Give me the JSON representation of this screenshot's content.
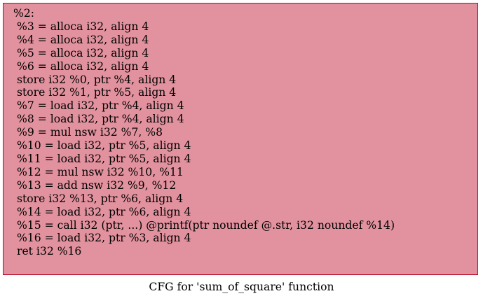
{
  "node": {
    "label": "%2:",
    "fill_color": "#e1929e",
    "border_color": "#b70d28",
    "instructions": [
      "%3 = alloca i32, align 4",
      "%4 = alloca i32, align 4",
      "%5 = alloca i32, align 4",
      "%6 = alloca i32, align 4",
      "store i32 %0, ptr %4, align 4",
      "store i32 %1, ptr %5, align 4",
      "%7 = load i32, ptr %4, align 4",
      "%8 = load i32, ptr %4, align 4",
      "%9 = mul nsw i32 %7, %8",
      "%10 = load i32, ptr %5, align 4",
      "%11 = load i32, ptr %5, align 4",
      "%12 = mul nsw i32 %10, %11",
      "%13 = add nsw i32 %9, %12",
      "store i32 %13, ptr %6, align 4",
      "%14 = load i32, ptr %6, align 4",
      "%15 = call i32 (ptr, ...) @printf(ptr noundef @.str, i32 noundef %14)",
      "%16 = load i32, ptr %3, align 4",
      "ret i32 %16"
    ]
  },
  "caption": "CFG for 'sum_of_square' function"
}
